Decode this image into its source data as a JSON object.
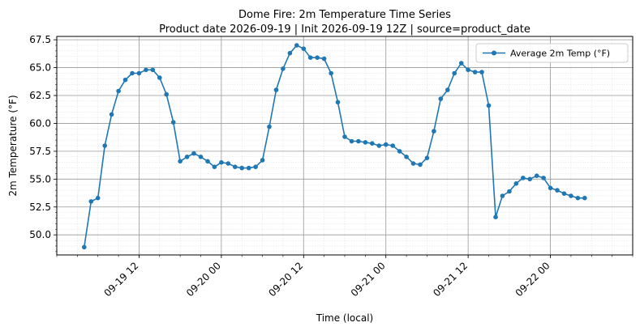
{
  "chart_data": {
    "type": "line",
    "title": "Dome Fire: 2m Temperature Time Series",
    "subtitle": "Product date 2026-09-19 | Init 2026-09-19 12Z | source=product_date",
    "xlabel": "Time (local)",
    "ylabel": "2m Temperature (°F)",
    "ylim": [
      48.2,
      67.8
    ],
    "xlim": [
      "2026-09-19 00:00",
      "2026-09-22 12:00"
    ],
    "grid": true,
    "legend_position": "top-right",
    "y_ticks": [
      {
        "value": 50.0,
        "label": "50.0"
      },
      {
        "value": 52.5,
        "label": "52.5"
      },
      {
        "value": 55.0,
        "label": "55.0"
      },
      {
        "value": 57.5,
        "label": "57.5"
      },
      {
        "value": 60.0,
        "label": "60.0"
      },
      {
        "value": 62.5,
        "label": "62.5"
      },
      {
        "value": 65.0,
        "label": "65.0"
      },
      {
        "value": 67.5,
        "label": "67.5"
      }
    ],
    "x_ticks": [
      {
        "value": "2026-09-19 12:00",
        "label": "09-19 12"
      },
      {
        "value": "2026-09-20 00:00",
        "label": "09-20 00"
      },
      {
        "value": "2026-09-20 12:00",
        "label": "09-20 12"
      },
      {
        "value": "2026-09-21 00:00",
        "label": "09-21 00"
      },
      {
        "value": "2026-09-21 12:00",
        "label": "09-21 12"
      },
      {
        "value": "2026-09-22 00:00",
        "label": "09-22 00"
      }
    ],
    "series": [
      {
        "name": "Average 2m Temp (°F)",
        "color": "#1f77b4",
        "x": [
          "2026-09-19 04:00",
          "2026-09-19 05:00",
          "2026-09-19 06:00",
          "2026-09-19 07:00",
          "2026-09-19 08:00",
          "2026-09-19 09:00",
          "2026-09-19 10:00",
          "2026-09-19 11:00",
          "2026-09-19 12:00",
          "2026-09-19 13:00",
          "2026-09-19 14:00",
          "2026-09-19 15:00",
          "2026-09-19 16:00",
          "2026-09-19 17:00",
          "2026-09-19 18:00",
          "2026-09-19 19:00",
          "2026-09-19 20:00",
          "2026-09-19 21:00",
          "2026-09-19 22:00",
          "2026-09-19 23:00",
          "2026-09-20 00:00",
          "2026-09-20 01:00",
          "2026-09-20 02:00",
          "2026-09-20 03:00",
          "2026-09-20 04:00",
          "2026-09-20 05:00",
          "2026-09-20 06:00",
          "2026-09-20 07:00",
          "2026-09-20 08:00",
          "2026-09-20 09:00",
          "2026-09-20 10:00",
          "2026-09-20 11:00",
          "2026-09-20 12:00",
          "2026-09-20 13:00",
          "2026-09-20 14:00",
          "2026-09-20 15:00",
          "2026-09-20 16:00",
          "2026-09-20 17:00",
          "2026-09-20 18:00",
          "2026-09-20 19:00",
          "2026-09-20 20:00",
          "2026-09-20 21:00",
          "2026-09-20 22:00",
          "2026-09-20 23:00",
          "2026-09-21 00:00",
          "2026-09-21 01:00",
          "2026-09-21 02:00",
          "2026-09-21 03:00",
          "2026-09-21 04:00",
          "2026-09-21 05:00",
          "2026-09-21 06:00",
          "2026-09-21 07:00",
          "2026-09-21 08:00",
          "2026-09-21 09:00",
          "2026-09-21 10:00",
          "2026-09-21 11:00",
          "2026-09-21 12:00",
          "2026-09-21 13:00",
          "2026-09-21 14:00",
          "2026-09-21 15:00",
          "2026-09-21 16:00",
          "2026-09-21 17:00",
          "2026-09-21 18:00",
          "2026-09-21 19:00",
          "2026-09-21 20:00",
          "2026-09-21 21:00",
          "2026-09-21 22:00",
          "2026-09-21 23:00",
          "2026-09-22 00:00",
          "2026-09-22 01:00",
          "2026-09-22 02:00",
          "2026-09-22 03:00",
          "2026-09-22 04:00",
          "2026-09-22 05:00"
        ],
        "y": [
          48.9,
          53.0,
          53.3,
          58.0,
          60.8,
          62.9,
          63.9,
          64.5,
          64.5,
          64.8,
          64.8,
          64.1,
          62.6,
          60.1,
          56.6,
          57.0,
          57.3,
          57.0,
          56.6,
          56.1,
          56.5,
          56.4,
          56.1,
          56.0,
          56.0,
          56.1,
          56.7,
          59.7,
          63.0,
          64.9,
          66.3,
          67.0,
          66.7,
          65.9,
          65.9,
          65.8,
          64.5,
          61.9,
          58.8,
          58.4,
          58.4,
          58.3,
          58.2,
          58.0,
          58.1,
          58.0,
          57.5,
          57.0,
          56.4,
          56.3,
          56.9,
          59.3,
          62.2,
          63.0,
          64.5,
          65.4,
          64.8,
          64.6,
          64.6,
          61.6,
          51.6,
          53.5,
          53.9,
          54.6,
          55.1,
          55.0,
          55.3,
          55.1,
          54.2,
          54.0,
          53.7,
          53.5,
          53.3,
          53.3
        ]
      }
    ]
  }
}
